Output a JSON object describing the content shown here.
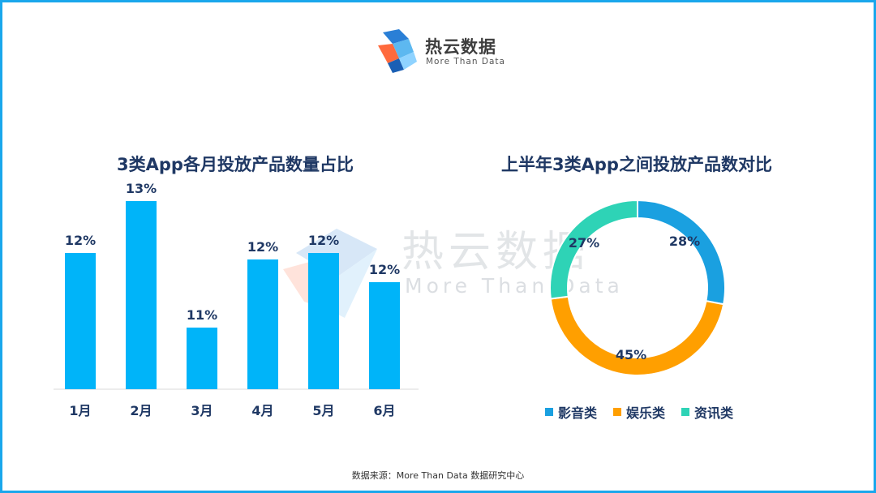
{
  "logo": {
    "name_cn": "热云数据",
    "name_en": "More Than Data"
  },
  "watermark": {
    "text_cn": "热云数据",
    "text_en": "More Than Data"
  },
  "colors": {
    "frame": "#1aa7ec",
    "bar": "#00b4f9",
    "title": "#1f3864",
    "yingyin": "#1aa0e0",
    "yule": "#ff9f00",
    "zixun": "#2ed3b6"
  },
  "chart_data": [
    {
      "type": "bar",
      "title": "3类App各月投放产品数量占比",
      "categories": [
        "1月",
        "2月",
        "3月",
        "4月",
        "5月",
        "6月"
      ],
      "values": [
        12,
        13,
        11,
        12,
        12,
        12
      ],
      "value_labels": [
        "12%",
        "13%",
        "11%",
        "12%",
        "12%",
        "12%"
      ],
      "display_heights": [
        12,
        13,
        11,
        12,
        12,
        12
      ],
      "xlabel": "",
      "ylabel": "",
      "unit": "%",
      "grid": false
    },
    {
      "type": "pie",
      "subtype": "donut",
      "title": "上半年3类App之间投放产品数对比",
      "labels": [
        "影音类",
        "娱乐类",
        "资讯类"
      ],
      "values": [
        28,
        45,
        27
      ],
      "value_labels": [
        "28%",
        "45%",
        "27%"
      ],
      "legend_position": "bottom"
    }
  ],
  "source": "数据来源：More  Than  Data  数据研究中心"
}
